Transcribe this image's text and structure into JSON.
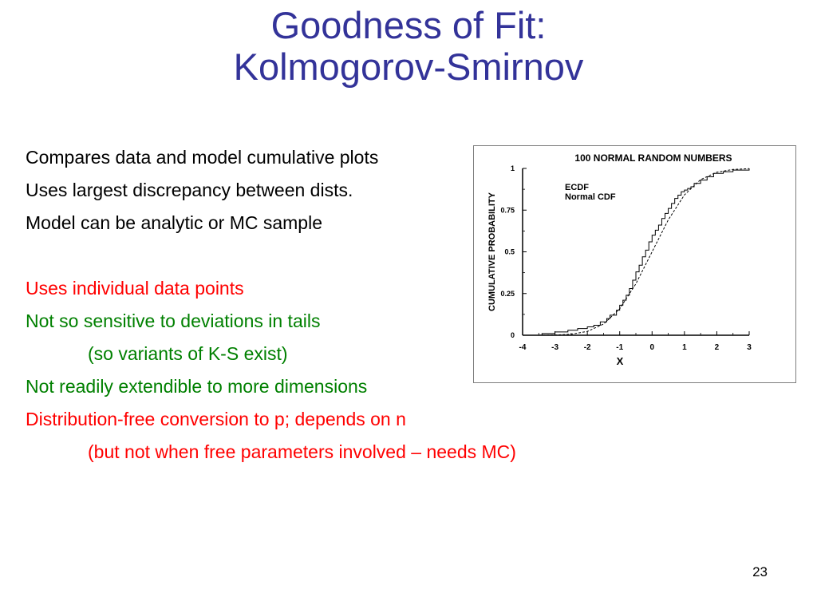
{
  "slide": {
    "title_line1": "Goodness of Fit:",
    "title_line2": "Kolmogorov-Smirnov",
    "page_number": "23",
    "bullets": [
      {
        "text": "Compares data and model cumulative plots",
        "color": "#000000",
        "indent": false
      },
      {
        "text": "Uses largest discrepancy between dists.",
        "color": "#000000",
        "indent": false
      },
      {
        "text": "Model can be analytic or MC sample",
        "color": "#000000",
        "indent": false
      },
      {
        "text": "",
        "color": "#000000",
        "indent": false
      },
      {
        "text": "Uses individual data points",
        "color": "#ff0000",
        "indent": false
      },
      {
        "text": "Not so sensitive to deviations in tails",
        "color": "#008000",
        "indent": false
      },
      {
        "text": "(so variants of K-S exist)",
        "color": "#008000",
        "indent": true
      },
      {
        "text": "Not readily extendible to more dimensions",
        "color": "#008000",
        "indent": false
      },
      {
        "text": "Distribution-free conversion to p; depends on n",
        "color": "#ff0000",
        "indent": false
      },
      {
        "text": "(but not when free parameters involved – needs MC)",
        "color": "#ff0000",
        "indent": true
      }
    ]
  },
  "chart_data": {
    "type": "line",
    "title": "100 NORMAL RANDOM NUMBERS",
    "xlabel": "X",
    "ylabel": "CUMULATIVE PROBABILITY",
    "xlim": [
      -4,
      3
    ],
    "ylim": [
      0,
      1
    ],
    "xticks": [
      -4,
      -3,
      -2,
      -1,
      0,
      1,
      2,
      3
    ],
    "yticks": [
      0,
      0.25,
      0.5,
      0.75,
      1
    ],
    "ytick_labels": [
      "0",
      "0.25",
      "0.5",
      "0.75",
      "1"
    ],
    "legend": [
      "ECDF",
      "Normal CDF"
    ],
    "legend_position": "top-left",
    "series": [
      {
        "name": "ECDF",
        "style": "step",
        "x": [
          -3.4,
          -3.0,
          -2.6,
          -2.3,
          -2.0,
          -1.8,
          -1.6,
          -1.4,
          -1.3,
          -1.1,
          -1.0,
          -0.9,
          -0.8,
          -0.7,
          -0.6,
          -0.5,
          -0.4,
          -0.3,
          -0.2,
          -0.1,
          0.0,
          0.1,
          0.2,
          0.3,
          0.4,
          0.5,
          0.6,
          0.7,
          0.8,
          0.9,
          1.0,
          1.1,
          1.2,
          1.3,
          1.5,
          1.7,
          1.9,
          2.2,
          2.5,
          3.0
        ],
        "y": [
          0.01,
          0.02,
          0.03,
          0.04,
          0.05,
          0.06,
          0.08,
          0.1,
          0.12,
          0.15,
          0.18,
          0.21,
          0.24,
          0.28,
          0.33,
          0.38,
          0.42,
          0.47,
          0.51,
          0.56,
          0.6,
          0.63,
          0.66,
          0.7,
          0.73,
          0.76,
          0.79,
          0.82,
          0.84,
          0.86,
          0.87,
          0.88,
          0.89,
          0.91,
          0.93,
          0.95,
          0.97,
          0.98,
          0.99,
          1.0
        ]
      },
      {
        "name": "Normal CDF",
        "style": "dashed",
        "x": [
          -3.5,
          -3.0,
          -2.5,
          -2.0,
          -1.5,
          -1.0,
          -0.5,
          0.0,
          0.5,
          1.0,
          1.5,
          2.0,
          2.5,
          3.0
        ],
        "y": [
          0.0002,
          0.0013,
          0.0062,
          0.0228,
          0.0668,
          0.1587,
          0.3085,
          0.5,
          0.6915,
          0.8413,
          0.9332,
          0.9772,
          0.9938,
          0.9987
        ]
      }
    ],
    "grid": false
  }
}
